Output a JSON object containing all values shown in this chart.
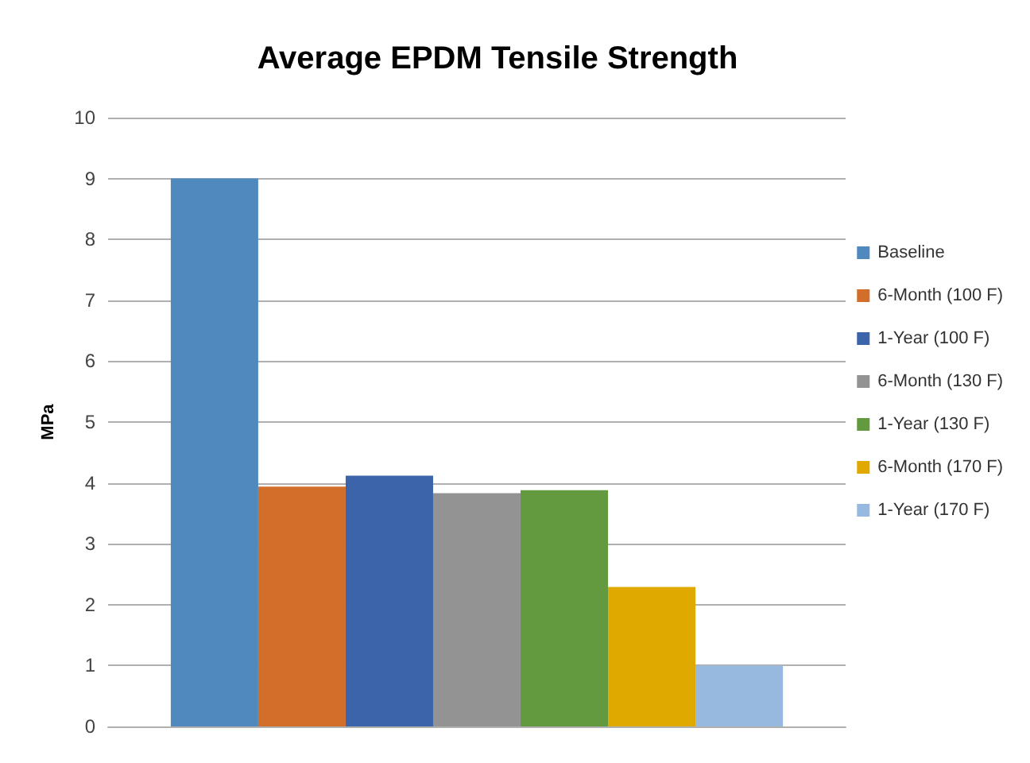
{
  "chart_data": {
    "type": "bar",
    "title": "Average EPDM Tensile Strength",
    "ylabel": "MPa",
    "categories": [
      null
    ],
    "series": [
      {
        "name": "Baseline",
        "color": "#4f89bd",
        "values": [
          9.0
        ]
      },
      {
        "name": "6-Month (100 F)",
        "color": "#d26e2a",
        "values": [
          3.94
        ]
      },
      {
        "name": "1-Year (100 F)",
        "color": "#3c64ab",
        "values": [
          4.12
        ]
      },
      {
        "name": "6-Month (130 F)",
        "color": "#939393",
        "values": [
          3.83
        ]
      },
      {
        "name": "1-Year (130 F)",
        "color": "#639a3f",
        "values": [
          3.88
        ]
      },
      {
        "name": "6-Month (170 F)",
        "color": "#e0a900",
        "values": [
          2.29
        ]
      },
      {
        "name": "1-Year (170 F)",
        "color": "#97b9e0",
        "values": [
          1.0
        ]
      }
    ],
    "ylim": [
      0,
      10
    ],
    "yticks": [
      0,
      1,
      2,
      3,
      4,
      5,
      6,
      7,
      8,
      9,
      10
    ],
    "grid": "y",
    "legend": "right"
  }
}
